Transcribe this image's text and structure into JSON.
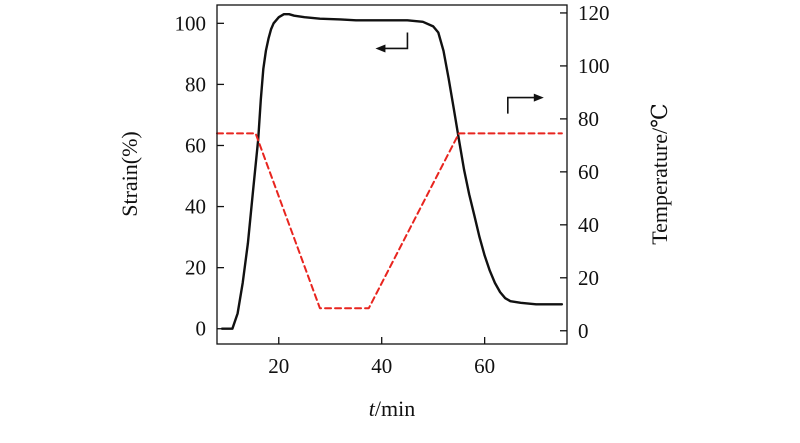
{
  "chart_data": {
    "type": "line",
    "xlabel_italic": "t",
    "xlabel_rest": "/min",
    "ylabel_left": "Strain(%)",
    "ylabel_right": "Temperature/℃",
    "xlim": [
      8,
      76
    ],
    "ylim_left": [
      -5,
      106
    ],
    "ylim_right": [
      -5,
      123
    ],
    "x_ticks": [
      20,
      40,
      60
    ],
    "y_ticks_left": [
      0,
      20,
      40,
      60,
      80,
      100
    ],
    "y_ticks_right": [
      0,
      20,
      40,
      60,
      80,
      100,
      120
    ],
    "grid": false,
    "series": [
      {
        "axis": "left",
        "color": "#111111",
        "style": "solid",
        "x": [
          9,
          11,
          12,
          13,
          14,
          15,
          16,
          16.5,
          17,
          17.5,
          18,
          18.5,
          19,
          20,
          21,
          22,
          23,
          25,
          28,
          32,
          35,
          40,
          45,
          48,
          50,
          51,
          52,
          53,
          54,
          55,
          56,
          57,
          58,
          59,
          60,
          61,
          62,
          63,
          64,
          65,
          67,
          70,
          73,
          75
        ],
        "y": [
          0,
          0,
          5,
          15,
          28,
          45,
          62,
          75,
          85,
          91,
          95,
          98,
          100,
          102,
          103,
          103,
          102.5,
          102,
          101.5,
          101.3,
          101,
          101,
          101,
          100.5,
          99,
          97,
          91,
          82,
          72,
          62,
          52,
          44,
          37,
          30,
          24,
          19,
          15,
          12,
          10,
          9,
          8.5,
          8,
          8,
          8
        ]
      },
      {
        "axis": "right",
        "color": "#e8251f",
        "style": "dashed",
        "x": [
          8,
          15.5,
          28,
          37.5,
          55,
          75
        ],
        "y": [
          74.5,
          74.5,
          8.5,
          8.5,
          74.5,
          74.5
        ]
      }
    ],
    "annotations": [
      {
        "type": "arrow",
        "points_to": "left-axis",
        "anchor_x": 45,
        "anchor_y_left": 97
      },
      {
        "type": "arrow",
        "points_to": "right-axis",
        "anchor_x": 64.5,
        "anchor_y_right": 82
      }
    ]
  }
}
